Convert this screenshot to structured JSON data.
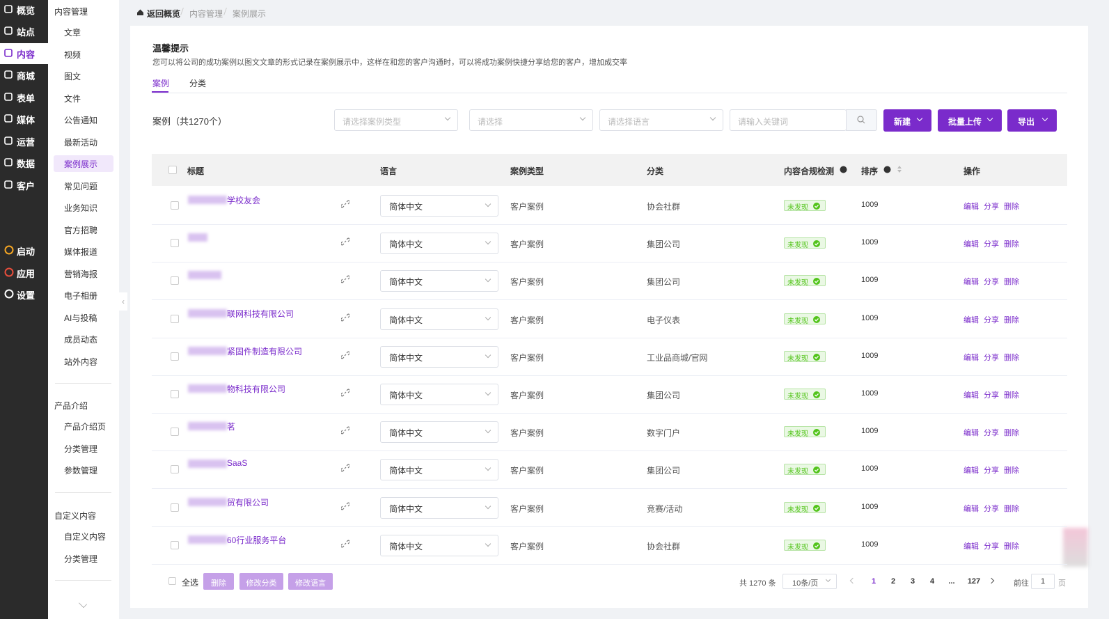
{
  "sidebar": {
    "items": [
      "概览",
      "站点",
      "内容",
      "商城",
      "表单",
      "媒体",
      "运营",
      "数据",
      "客户"
    ],
    "apps": [
      "启动",
      "应用",
      "设置"
    ]
  },
  "submenu": {
    "groups": [
      {
        "title": "内容管理",
        "items": [
          "文章",
          "视频",
          "图文",
          "文件",
          "公告通知",
          "最新活动",
          "案例展示",
          "常见问题",
          "业务知识",
          "官方招聘",
          "媒体报道",
          "营销海报",
          "电子相册",
          "AI与投稿",
          "成员动态",
          "站外内容"
        ]
      },
      {
        "title": "产品介绍",
        "items": [
          "产品介绍页",
          "分类管理",
          "参数管理"
        ]
      },
      {
        "title": "自定义内容",
        "items": [
          "自定义内容",
          "分类管理"
        ]
      }
    ]
  },
  "breadcrumb": [
    "返回概览",
    "内容管理",
    "案例展示"
  ],
  "tip": {
    "title": "温馨提示",
    "text": "您可以将公司的成功案例以图文文章的形式记录在案例展示中，这样在和您的客户沟通时，可以将成功案例快捷分享给您的客户，增加成交率"
  },
  "tabs": [
    "案例",
    "分类"
  ],
  "toolbar": {
    "count": "案例（共1270个）",
    "filters": [
      "请选择案例类型",
      "请选择",
      "请选择语言",
      "请输入关键词"
    ],
    "buttons": [
      "新建",
      "批量上传",
      "导出"
    ]
  },
  "table": {
    "headers": [
      "标题",
      "语言",
      "案例类型",
      "分类",
      "内容合规检测",
      "排序",
      "操作"
    ],
    "actions": [
      "编辑",
      "分享",
      "删除"
    ],
    "rows": [
      {
        "title": "学校友会",
        "language": "简体中文",
        "type": "客户案例",
        "category": "协会社群",
        "status": "未发现",
        "sort": 1009
      },
      {
        "title": null,
        "language": "简体中文",
        "type": "客户案例",
        "category": "集团公司",
        "status": "未发现",
        "sort": 1009
      },
      {
        "title": null,
        "language": "简体中文",
        "type": "客户案例",
        "category": "集团公司",
        "status": "未发现",
        "sort": 1009
      },
      {
        "title": "联网科技有限公司",
        "language": "简体中文",
        "type": "客户案例",
        "category": "电子仪表",
        "status": "未发现",
        "sort": 1009
      },
      {
        "title": "紧固件制造有限公司",
        "language": "简体中文",
        "type": "客户案例",
        "category": "工业品商城/官网",
        "status": "未发现",
        "sort": 1009
      },
      {
        "title": "物科技有限公司",
        "language": "简体中文",
        "type": "客户案例",
        "category": "集团公司",
        "status": "未发现",
        "sort": 1009
      },
      {
        "title": "茗",
        "language": "简体中文",
        "type": "客户案例",
        "category": "数字门户",
        "status": "未发现",
        "sort": 1009
      },
      {
        "title": "SaaS",
        "language": "简体中文",
        "type": "客户案例",
        "category": "集团公司",
        "status": "未发现",
        "sort": 1009
      },
      {
        "title": "贸有限公司",
        "language": "简体中文",
        "type": "客户案例",
        "category": "竞赛/活动",
        "status": "未发现",
        "sort": 1009
      },
      {
        "title": "60行业服务平台",
        "language": "简体中文",
        "type": "客户案例",
        "category": "协会社群",
        "status": "未发现",
        "sort": 1009
      }
    ]
  },
  "footer": {
    "select_all": "全选",
    "buttons": [
      "删除",
      "修改分类",
      "修改语言"
    ],
    "total": "共 1270 条",
    "page_size": "10条/页",
    "pages": [
      "1",
      "2",
      "3",
      "4",
      "...",
      "127"
    ],
    "goto": "前往",
    "goto_value": "1",
    "page_unit": "页"
  }
}
